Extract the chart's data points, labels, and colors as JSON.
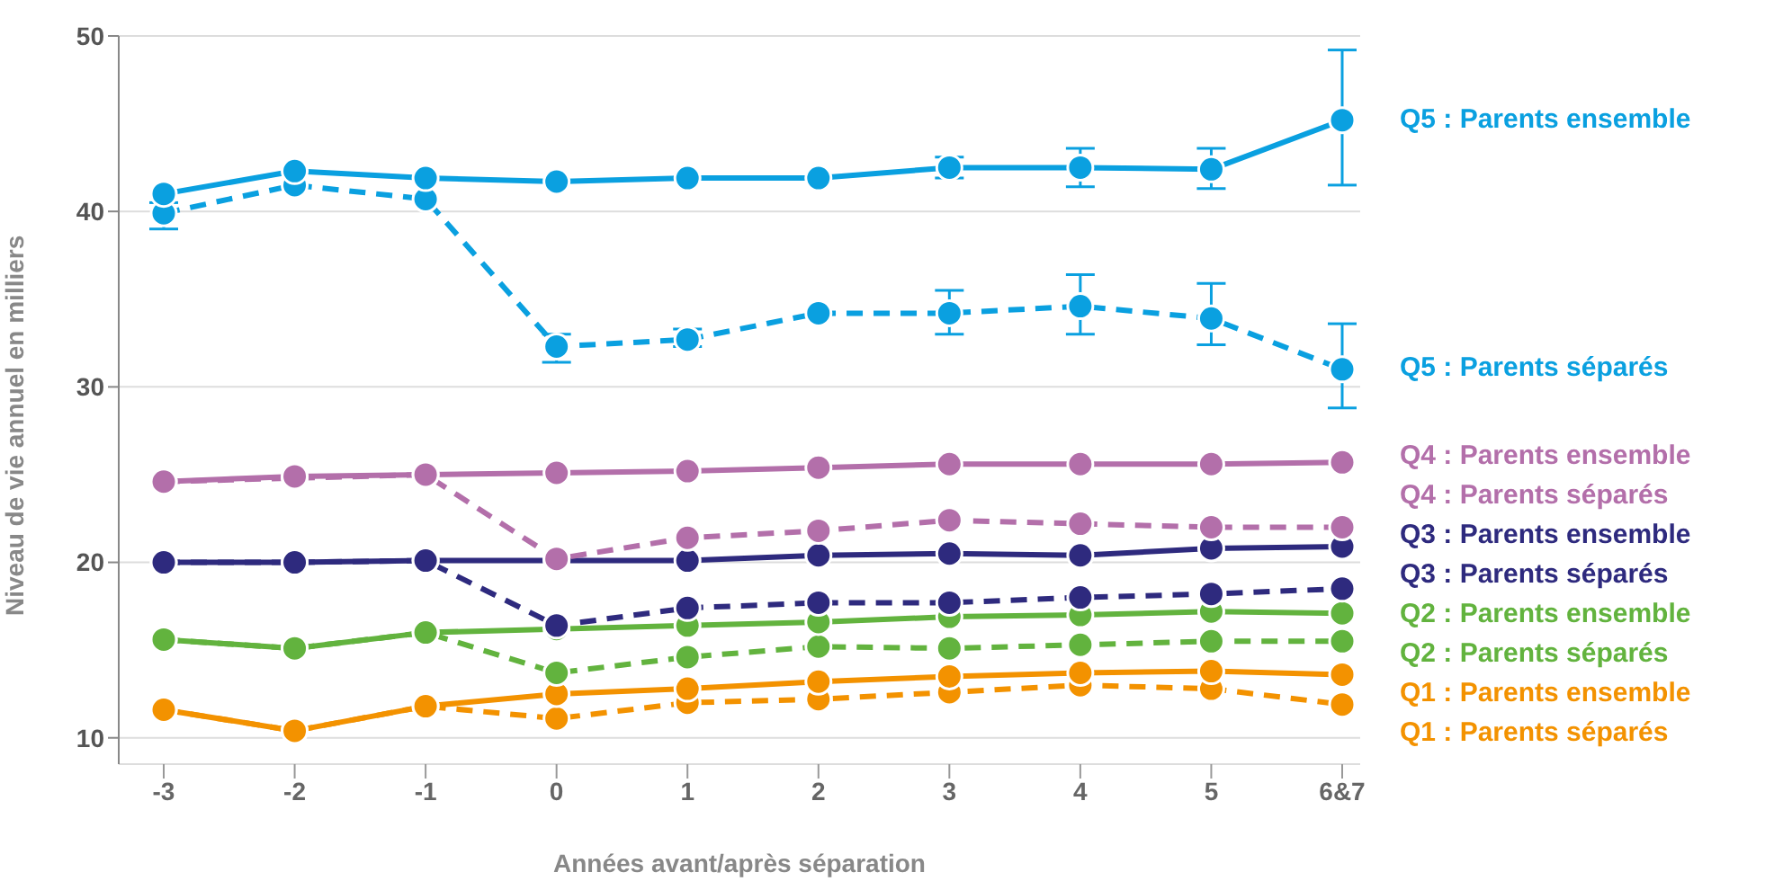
{
  "chart_data": {
    "type": "line",
    "xlabel": "Années avant/après séparation",
    "ylabel": "Niveau de vie annuel en milliers",
    "categories": [
      "-3",
      "-2",
      "-1",
      "0",
      "1",
      "2",
      "3",
      "4",
      "5",
      "6&7"
    ],
    "ylim": [
      8.5,
      50
    ],
    "yticks": [
      10,
      20,
      30,
      40,
      50
    ],
    "grid": "y",
    "marker": "circle",
    "series": [
      {
        "name": "Q5 : Parents ensemble",
        "color": "#0aa0e0",
        "line_style": "solid",
        "values": [
          41.0,
          42.3,
          41.9,
          41.7,
          41.9,
          41.9,
          42.5,
          42.5,
          42.4,
          45.2
        ],
        "errors": [
          null,
          null,
          null,
          null,
          null,
          null,
          [
            41.9,
            43.1
          ],
          [
            41.4,
            43.6
          ],
          [
            41.3,
            43.6
          ],
          [
            41.5,
            49.2
          ]
        ]
      },
      {
        "name": "Q5 : Parents séparés",
        "color": "#0aa0e0",
        "line_style": "dashed",
        "values": [
          39.9,
          41.5,
          40.7,
          32.3,
          32.7,
          34.2,
          34.2,
          34.6,
          33.9,
          31.0
        ],
        "errors": [
          [
            39.0,
            40.5
          ],
          null,
          null,
          [
            31.4,
            33.0
          ],
          [
            32.3,
            33.3
          ],
          null,
          [
            33.0,
            35.5
          ],
          [
            33.0,
            36.4
          ],
          [
            32.4,
            35.9
          ],
          [
            28.8,
            33.6
          ]
        ]
      },
      {
        "name": "Q4 : Parents ensemble",
        "color": "#b36faa",
        "line_style": "solid",
        "values": [
          24.6,
          24.9,
          25.0,
          25.1,
          25.2,
          25.4,
          25.6,
          25.6,
          25.6,
          25.7
        ]
      },
      {
        "name": "Q4 : Parents séparés",
        "color": "#b36faa",
        "line_style": "dashed",
        "values": [
          24.6,
          24.8,
          25.0,
          20.2,
          21.4,
          21.8,
          22.4,
          22.2,
          22.0,
          22.0
        ]
      },
      {
        "name": "Q3 : Parents ensemble",
        "color": "#2e2a7e",
        "line_style": "solid",
        "values": [
          20.0,
          20.0,
          20.1,
          20.1,
          20.1,
          20.4,
          20.5,
          20.4,
          20.8,
          20.9
        ]
      },
      {
        "name": "Q3 : Parents séparés",
        "color": "#2e2a7e",
        "line_style": "dashed",
        "values": [
          20.0,
          20.0,
          20.1,
          16.4,
          17.4,
          17.7,
          17.7,
          18.0,
          18.2,
          18.5
        ]
      },
      {
        "name": "Q2 : Parents ensemble",
        "color": "#62b33e",
        "line_style": "solid",
        "values": [
          15.6,
          15.1,
          16.0,
          16.2,
          16.4,
          16.6,
          16.9,
          17.0,
          17.2,
          17.1
        ]
      },
      {
        "name": "Q2 : Parents séparés",
        "color": "#62b33e",
        "line_style": "dashed",
        "values": [
          15.6,
          15.1,
          16.0,
          13.7,
          14.6,
          15.2,
          15.1,
          15.3,
          15.5,
          15.5
        ]
      },
      {
        "name": "Q1 : Parents ensemble",
        "color": "#f39200",
        "line_style": "solid",
        "values": [
          11.6,
          10.4,
          11.8,
          12.5,
          12.8,
          13.2,
          13.5,
          13.7,
          13.8,
          13.6
        ]
      },
      {
        "name": "Q1 : Parents séparés",
        "color": "#f39200",
        "line_style": "dashed",
        "values": [
          11.6,
          10.4,
          11.8,
          11.1,
          12.0,
          12.2,
          12.6,
          13.0,
          12.8,
          11.9
        ]
      }
    ]
  }
}
